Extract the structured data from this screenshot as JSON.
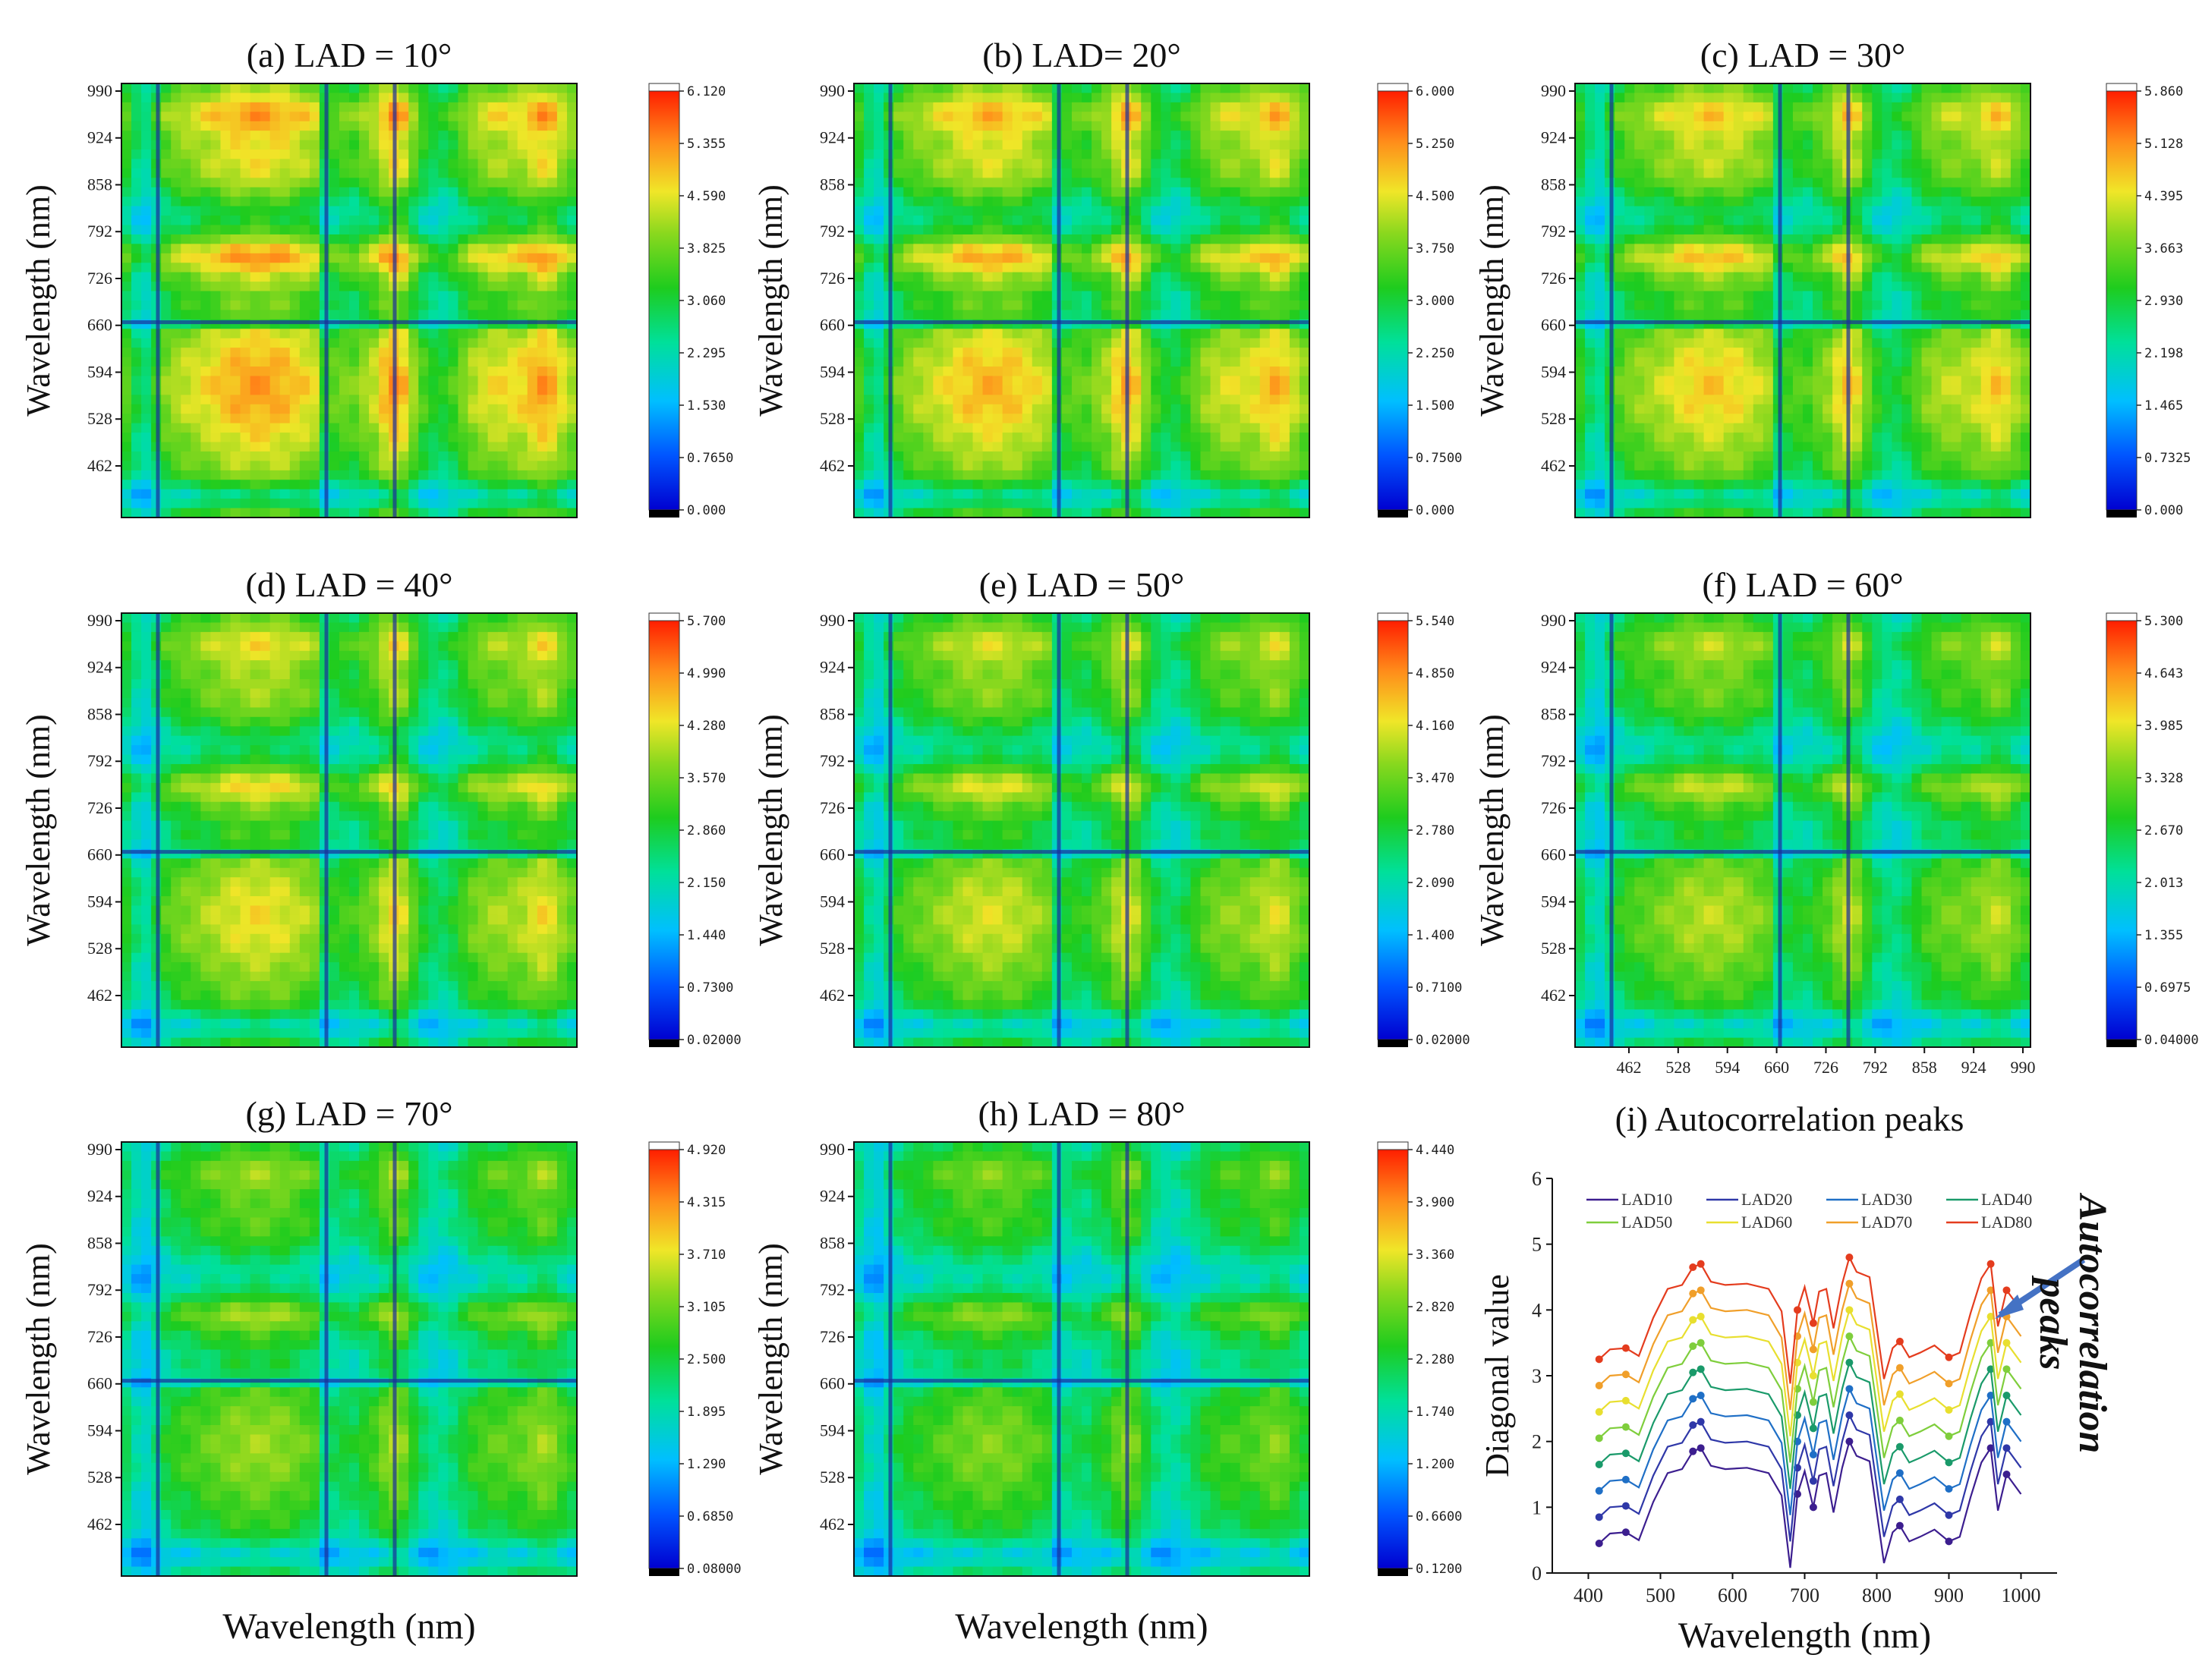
{
  "chart_data": [
    {
      "type": "heatmap",
      "panel": "a",
      "title": "(a) LAD = 10°",
      "ylabel": "Wavelength (nm)",
      "xlabel": "",
      "y_ticks": [
        "462",
        "528",
        "594",
        "660",
        "726",
        "792",
        "858",
        "924",
        "990"
      ],
      "x_ticks": [],
      "colorbar": {
        "min": 0,
        "max": 6.12,
        "ticks": [
          "0.000",
          "0.7650",
          "1.530",
          "2.295",
          "3.060",
          "3.825",
          "4.590",
          "5.355",
          "6.120"
        ]
      }
    },
    {
      "type": "heatmap",
      "panel": "b",
      "title": "(b) LAD= 20°",
      "ylabel": "Wavelength (nm)",
      "xlabel": "",
      "y_ticks": [
        "462",
        "528",
        "594",
        "660",
        "726",
        "792",
        "858",
        "924",
        "990"
      ],
      "x_ticks": [],
      "colorbar": {
        "min": 0,
        "max": 6.0,
        "ticks": [
          "0.000",
          "0.7500",
          "1.500",
          "2.250",
          "3.000",
          "3.750",
          "4.500",
          "5.250",
          "6.000"
        ]
      }
    },
    {
      "type": "heatmap",
      "panel": "c",
      "title": "(c) LAD = 30°",
      "ylabel": "Wavelength (nm)",
      "xlabel": "",
      "y_ticks": [
        "462",
        "528",
        "594",
        "660",
        "726",
        "792",
        "858",
        "924",
        "990"
      ],
      "x_ticks": [],
      "colorbar": {
        "min": 0,
        "max": 5.86,
        "ticks": [
          "0.000",
          "0.7325",
          "1.465",
          "2.198",
          "2.930",
          "3.663",
          "4.395",
          "5.128",
          "5.860"
        ]
      }
    },
    {
      "type": "heatmap",
      "panel": "d",
      "title": "(d) LAD = 40°",
      "ylabel": "Wavelength (nm)",
      "xlabel": "",
      "y_ticks": [
        "462",
        "528",
        "594",
        "660",
        "726",
        "792",
        "858",
        "924",
        "990"
      ],
      "x_ticks": [],
      "colorbar": {
        "min": 0.02,
        "max": 5.7,
        "ticks": [
          "0.02000",
          "0.7300",
          "1.440",
          "2.150",
          "2.860",
          "3.570",
          "4.280",
          "4.990",
          "5.700"
        ]
      }
    },
    {
      "type": "heatmap",
      "panel": "e",
      "title": "(e) LAD = 50°",
      "ylabel": "Wavelength (nm)",
      "xlabel": "",
      "y_ticks": [
        "462",
        "528",
        "594",
        "660",
        "726",
        "792",
        "858",
        "924",
        "990"
      ],
      "x_ticks": [],
      "colorbar": {
        "min": 0.02,
        "max": 5.54,
        "ticks": [
          "0.02000",
          "0.7100",
          "1.400",
          "2.090",
          "2.780",
          "3.470",
          "4.160",
          "4.850",
          "5.540"
        ]
      }
    },
    {
      "type": "heatmap",
      "panel": "f",
      "title": "(f) LAD = 60°",
      "ylabel": "Wavelength (nm)",
      "xlabel": "",
      "y_ticks": [
        "462",
        "528",
        "594",
        "660",
        "726",
        "792",
        "858",
        "924",
        "990"
      ],
      "x_ticks": [
        "462",
        "528",
        "594",
        "660",
        "726",
        "792",
        "858",
        "924",
        "990"
      ],
      "colorbar": {
        "min": 0.04,
        "max": 5.3,
        "ticks": [
          "0.04000",
          "0.6975",
          "1.355",
          "2.013",
          "2.670",
          "3.328",
          "3.985",
          "4.643",
          "5.300"
        ]
      }
    },
    {
      "type": "heatmap",
      "panel": "g",
      "title": "(g) LAD = 70°",
      "ylabel": "Wavelength (nm)",
      "xlabel": "Wavelength (nm)",
      "y_ticks": [
        "462",
        "528",
        "594",
        "660",
        "726",
        "792",
        "858",
        "924",
        "990"
      ],
      "x_ticks": [],
      "colorbar": {
        "min": 0.08,
        "max": 4.92,
        "ticks": [
          "0.08000",
          "0.6850",
          "1.290",
          "1.895",
          "2.500",
          "3.105",
          "3.710",
          "4.315",
          "4.920"
        ]
      }
    },
    {
      "type": "heatmap",
      "panel": "h",
      "title": "(h) LAD = 80°",
      "ylabel": "Wavelength (nm)",
      "xlabel": "Wavelength (nm)",
      "y_ticks": [
        "462",
        "528",
        "594",
        "660",
        "726",
        "792",
        "858",
        "924",
        "990"
      ],
      "x_ticks": [],
      "colorbar": {
        "min": 0.12,
        "max": 4.44,
        "ticks": [
          "0.1200",
          "0.6600",
          "1.200",
          "1.740",
          "2.280",
          "2.820",
          "3.360",
          "3.900",
          "4.440"
        ]
      }
    },
    {
      "type": "line",
      "panel": "i",
      "title": "(i) Autocorrelation peaks",
      "xlabel": "Wavelength (nm)",
      "ylabel": "Diagonal value",
      "xlim": [
        350,
        1050
      ],
      "ylim": [
        0,
        6
      ],
      "x_ticks": [
        "400",
        "500",
        "600",
        "700",
        "800",
        "900",
        "1000"
      ],
      "y_ticks": [
        "0",
        "1",
        "2",
        "3",
        "4",
        "5",
        "6"
      ],
      "annotation": "Autocorrelation peaks",
      "x": [
        415,
        430,
        452,
        470,
        490,
        510,
        530,
        545,
        556,
        570,
        590,
        620,
        650,
        668,
        680,
        690,
        700,
        712,
        720,
        730,
        740,
        752,
        762,
        772,
        790,
        810,
        822,
        832,
        845,
        860,
        880,
        900,
        915,
        930,
        945,
        958,
        968,
        980,
        1000
      ],
      "base": [
        0.45,
        0.6,
        0.62,
        0.5,
        1.08,
        1.52,
        1.58,
        1.85,
        1.9,
        1.63,
        1.58,
        1.6,
        1.52,
        1.18,
        0.08,
        1.2,
        1.55,
        1.0,
        1.48,
        1.52,
        0.92,
        1.6,
        2.0,
        1.78,
        1.7,
        0.15,
        0.62,
        0.72,
        0.48,
        0.55,
        0.66,
        0.48,
        0.55,
        1.15,
        1.68,
        1.9,
        0.95,
        1.5,
        1.2
      ],
      "series": [
        {
          "name": "LAD10",
          "offset": 0.0,
          "color": "#3c1e8f"
        },
        {
          "name": "LAD20",
          "offset": 0.4,
          "color": "#2f38a8"
        },
        {
          "name": "LAD30",
          "offset": 0.8,
          "color": "#1f6fc6"
        },
        {
          "name": "LAD40",
          "offset": 1.2,
          "color": "#1a9a6a"
        },
        {
          "name": "LAD50",
          "offset": 1.6,
          "color": "#7fce3c"
        },
        {
          "name": "LAD60",
          "offset": 2.0,
          "color": "#e8df2f"
        },
        {
          "name": "LAD70",
          "offset": 2.4,
          "color": "#f09f2a"
        },
        {
          "name": "LAD80",
          "offset": 2.8,
          "color": "#e43c1e"
        }
      ],
      "peak_x": [
        415,
        452,
        545,
        556,
        690,
        712,
        762,
        832,
        900,
        958,
        980
      ],
      "legend": "top-left"
    }
  ]
}
